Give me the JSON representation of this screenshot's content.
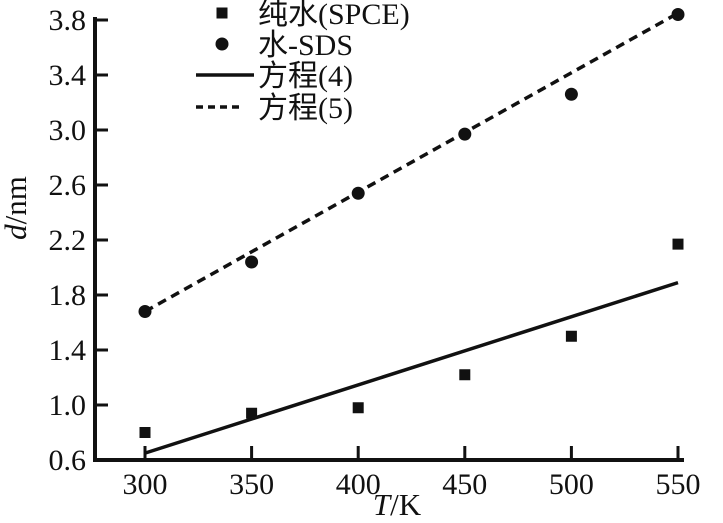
{
  "chart_data": {
    "type": "scatter",
    "title": "",
    "x_axis_label": {
      "italic_part": "T",
      "upright_part": "/K"
    },
    "y_axis_label": {
      "italic_part": "d",
      "upright_part": "/nm"
    },
    "x": [
      300,
      350,
      400,
      450,
      500,
      550
    ],
    "series": [
      {
        "name": "纯水(SPCE)",
        "marker": "square",
        "values": [
          0.8,
          0.94,
          0.98,
          1.22,
          1.5,
          2.17
        ]
      },
      {
        "name": "水-SDS",
        "marker": "circle",
        "values": [
          1.68,
          2.04,
          2.54,
          2.97,
          3.26,
          3.84
        ]
      }
    ],
    "fit_lines": [
      {
        "name": "方程(4)",
        "style": "solid",
        "points": [
          [
            300,
            0.65
          ],
          [
            550,
            1.89
          ]
        ]
      },
      {
        "name": "方程(5)",
        "style": "dashed",
        "points": [
          [
            300,
            1.68
          ],
          [
            550,
            3.85
          ]
        ]
      }
    ],
    "xticks": [
      300,
      350,
      400,
      450,
      500,
      550
    ],
    "yticks": [
      0.6,
      1.0,
      1.4,
      1.8,
      2.2,
      2.6,
      3.0,
      3.4,
      3.8
    ],
    "xlim": [
      274.7,
      552.8
    ],
    "ylim": [
      0.6,
      3.8
    ],
    "grid": false,
    "legend_position": "upper-left-inside",
    "colors": {
      "foreground": "#111111",
      "background": "#ffffff"
    }
  }
}
